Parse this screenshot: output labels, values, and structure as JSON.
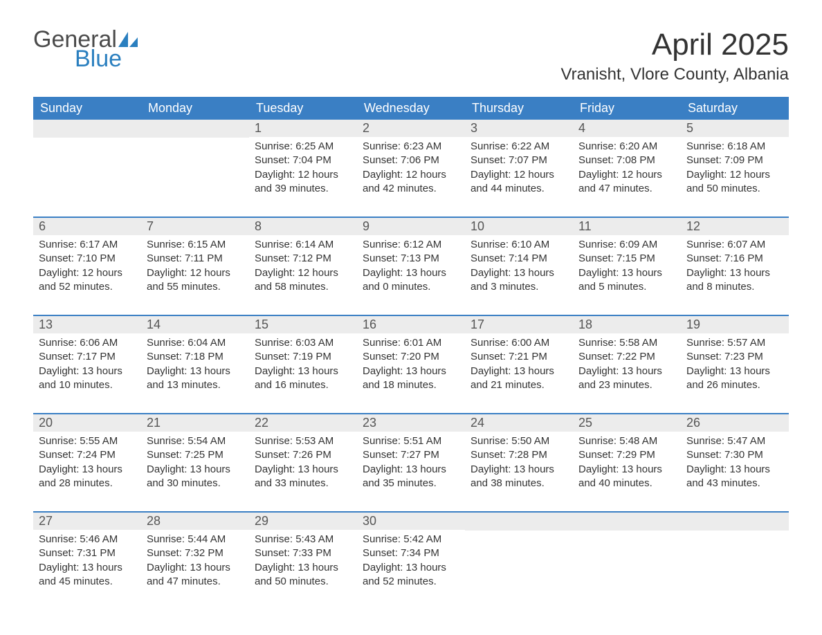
{
  "logo": {
    "text_general": "General",
    "text_blue": "Blue",
    "sail_color": "#2a7fbf"
  },
  "title": "April 2025",
  "location": "Vranisht, Vlore County, Albania",
  "colors": {
    "header_bg": "#3a7fc4",
    "header_text": "#ffffff",
    "day_num_bg": "#ececec",
    "day_num_text": "#555555",
    "body_text": "#333333",
    "border": "#3a7fc4",
    "page_bg": "#ffffff"
  },
  "day_headers": [
    "Sunday",
    "Monday",
    "Tuesday",
    "Wednesday",
    "Thursday",
    "Friday",
    "Saturday"
  ],
  "weeks": [
    [
      {
        "day": "",
        "sunrise": "",
        "sunset": "",
        "daylight": ""
      },
      {
        "day": "",
        "sunrise": "",
        "sunset": "",
        "daylight": ""
      },
      {
        "day": "1",
        "sunrise": "Sunrise: 6:25 AM",
        "sunset": "Sunset: 7:04 PM",
        "daylight": "Daylight: 12 hours and 39 minutes."
      },
      {
        "day": "2",
        "sunrise": "Sunrise: 6:23 AM",
        "sunset": "Sunset: 7:06 PM",
        "daylight": "Daylight: 12 hours and 42 minutes."
      },
      {
        "day": "3",
        "sunrise": "Sunrise: 6:22 AM",
        "sunset": "Sunset: 7:07 PM",
        "daylight": "Daylight: 12 hours and 44 minutes."
      },
      {
        "day": "4",
        "sunrise": "Sunrise: 6:20 AM",
        "sunset": "Sunset: 7:08 PM",
        "daylight": "Daylight: 12 hours and 47 minutes."
      },
      {
        "day": "5",
        "sunrise": "Sunrise: 6:18 AM",
        "sunset": "Sunset: 7:09 PM",
        "daylight": "Daylight: 12 hours and 50 minutes."
      }
    ],
    [
      {
        "day": "6",
        "sunrise": "Sunrise: 6:17 AM",
        "sunset": "Sunset: 7:10 PM",
        "daylight": "Daylight: 12 hours and 52 minutes."
      },
      {
        "day": "7",
        "sunrise": "Sunrise: 6:15 AM",
        "sunset": "Sunset: 7:11 PM",
        "daylight": "Daylight: 12 hours and 55 minutes."
      },
      {
        "day": "8",
        "sunrise": "Sunrise: 6:14 AM",
        "sunset": "Sunset: 7:12 PM",
        "daylight": "Daylight: 12 hours and 58 minutes."
      },
      {
        "day": "9",
        "sunrise": "Sunrise: 6:12 AM",
        "sunset": "Sunset: 7:13 PM",
        "daylight": "Daylight: 13 hours and 0 minutes."
      },
      {
        "day": "10",
        "sunrise": "Sunrise: 6:10 AM",
        "sunset": "Sunset: 7:14 PM",
        "daylight": "Daylight: 13 hours and 3 minutes."
      },
      {
        "day": "11",
        "sunrise": "Sunrise: 6:09 AM",
        "sunset": "Sunset: 7:15 PM",
        "daylight": "Daylight: 13 hours and 5 minutes."
      },
      {
        "day": "12",
        "sunrise": "Sunrise: 6:07 AM",
        "sunset": "Sunset: 7:16 PM",
        "daylight": "Daylight: 13 hours and 8 minutes."
      }
    ],
    [
      {
        "day": "13",
        "sunrise": "Sunrise: 6:06 AM",
        "sunset": "Sunset: 7:17 PM",
        "daylight": "Daylight: 13 hours and 10 minutes."
      },
      {
        "day": "14",
        "sunrise": "Sunrise: 6:04 AM",
        "sunset": "Sunset: 7:18 PM",
        "daylight": "Daylight: 13 hours and 13 minutes."
      },
      {
        "day": "15",
        "sunrise": "Sunrise: 6:03 AM",
        "sunset": "Sunset: 7:19 PM",
        "daylight": "Daylight: 13 hours and 16 minutes."
      },
      {
        "day": "16",
        "sunrise": "Sunrise: 6:01 AM",
        "sunset": "Sunset: 7:20 PM",
        "daylight": "Daylight: 13 hours and 18 minutes."
      },
      {
        "day": "17",
        "sunrise": "Sunrise: 6:00 AM",
        "sunset": "Sunset: 7:21 PM",
        "daylight": "Daylight: 13 hours and 21 minutes."
      },
      {
        "day": "18",
        "sunrise": "Sunrise: 5:58 AM",
        "sunset": "Sunset: 7:22 PM",
        "daylight": "Daylight: 13 hours and 23 minutes."
      },
      {
        "day": "19",
        "sunrise": "Sunrise: 5:57 AM",
        "sunset": "Sunset: 7:23 PM",
        "daylight": "Daylight: 13 hours and 26 minutes."
      }
    ],
    [
      {
        "day": "20",
        "sunrise": "Sunrise: 5:55 AM",
        "sunset": "Sunset: 7:24 PM",
        "daylight": "Daylight: 13 hours and 28 minutes."
      },
      {
        "day": "21",
        "sunrise": "Sunrise: 5:54 AM",
        "sunset": "Sunset: 7:25 PM",
        "daylight": "Daylight: 13 hours and 30 minutes."
      },
      {
        "day": "22",
        "sunrise": "Sunrise: 5:53 AM",
        "sunset": "Sunset: 7:26 PM",
        "daylight": "Daylight: 13 hours and 33 minutes."
      },
      {
        "day": "23",
        "sunrise": "Sunrise: 5:51 AM",
        "sunset": "Sunset: 7:27 PM",
        "daylight": "Daylight: 13 hours and 35 minutes."
      },
      {
        "day": "24",
        "sunrise": "Sunrise: 5:50 AM",
        "sunset": "Sunset: 7:28 PM",
        "daylight": "Daylight: 13 hours and 38 minutes."
      },
      {
        "day": "25",
        "sunrise": "Sunrise: 5:48 AM",
        "sunset": "Sunset: 7:29 PM",
        "daylight": "Daylight: 13 hours and 40 minutes."
      },
      {
        "day": "26",
        "sunrise": "Sunrise: 5:47 AM",
        "sunset": "Sunset: 7:30 PM",
        "daylight": "Daylight: 13 hours and 43 minutes."
      }
    ],
    [
      {
        "day": "27",
        "sunrise": "Sunrise: 5:46 AM",
        "sunset": "Sunset: 7:31 PM",
        "daylight": "Daylight: 13 hours and 45 minutes."
      },
      {
        "day": "28",
        "sunrise": "Sunrise: 5:44 AM",
        "sunset": "Sunset: 7:32 PM",
        "daylight": "Daylight: 13 hours and 47 minutes."
      },
      {
        "day": "29",
        "sunrise": "Sunrise: 5:43 AM",
        "sunset": "Sunset: 7:33 PM",
        "daylight": "Daylight: 13 hours and 50 minutes."
      },
      {
        "day": "30",
        "sunrise": "Sunrise: 5:42 AM",
        "sunset": "Sunset: 7:34 PM",
        "daylight": "Daylight: 13 hours and 52 minutes."
      },
      {
        "day": "",
        "sunrise": "",
        "sunset": "",
        "daylight": ""
      },
      {
        "day": "",
        "sunrise": "",
        "sunset": "",
        "daylight": ""
      },
      {
        "day": "",
        "sunrise": "",
        "sunset": "",
        "daylight": ""
      }
    ]
  ]
}
